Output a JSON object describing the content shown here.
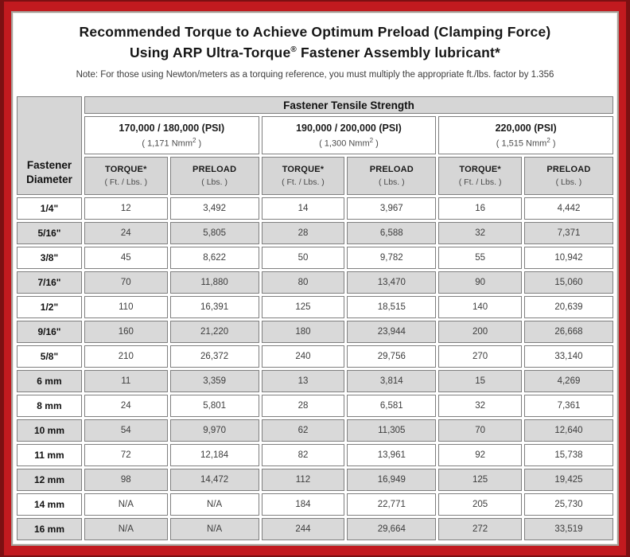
{
  "frame": {
    "red_color": "#c21a1f",
    "outer_edge_color": "#7c1012",
    "panel_border_color": "#a49f98",
    "cell_border_color": "#7f7f7f",
    "gray_cell_color": "#d6d6d6"
  },
  "header": {
    "title_line1": "Recommended Torque to Achieve Optimum Preload (Clamping Force)",
    "title_line2_pre": "Using ARP Ultra-Torque",
    "title_line2_sup": "®",
    "title_line2_post": " Fastener Assembly lubricant*",
    "note": "Note: For those using Newton/meters as a torquing reference, you must multiply the appropriate ft./lbs. factor by 1.356"
  },
  "chart_data": {
    "type": "table",
    "title": "Fastener Tensile Strength",
    "corner_line1": "Fastener",
    "corner_line2": "Diameter",
    "groups": [
      {
        "psi": "170,000 / 180,000 (PSI)",
        "nmm_pre": "( 1,171 Nmm",
        "nmm_sup": "2",
        "nmm_post": " )"
      },
      {
        "psi": "190,000 / 200,000 (PSI)",
        "nmm_pre": "( 1,300 Nmm",
        "nmm_sup": "2",
        "nmm_post": " )"
      },
      {
        "psi": "220,000 (PSI)",
        "nmm_pre": "( 1,515 Nmm",
        "nmm_sup": "2",
        "nmm_post": " )"
      }
    ],
    "sub_headers": {
      "torque_label": "TORQUE*",
      "torque_unit": "( Ft. / Lbs. )",
      "preload_label": "PRELOAD",
      "preload_unit": "( Lbs. )"
    },
    "rows": [
      {
        "diameter": "1/4\"",
        "values": [
          "12",
          "3,492",
          "14",
          "3,967",
          "16",
          "4,442"
        ]
      },
      {
        "diameter": "5/16\"",
        "values": [
          "24",
          "5,805",
          "28",
          "6,588",
          "32",
          "7,371"
        ]
      },
      {
        "diameter": "3/8\"",
        "values": [
          "45",
          "8,622",
          "50",
          "9,782",
          "55",
          "10,942"
        ]
      },
      {
        "diameter": "7/16\"",
        "values": [
          "70",
          "11,880",
          "80",
          "13,470",
          "90",
          "15,060"
        ]
      },
      {
        "diameter": "1/2\"",
        "values": [
          "110",
          "16,391",
          "125",
          "18,515",
          "140",
          "20,639"
        ]
      },
      {
        "diameter": "9/16\"",
        "values": [
          "160",
          "21,220",
          "180",
          "23,944",
          "200",
          "26,668"
        ]
      },
      {
        "diameter": "5/8\"",
        "values": [
          "210",
          "26,372",
          "240",
          "29,756",
          "270",
          "33,140"
        ]
      },
      {
        "diameter": "6 mm",
        "values": [
          "11",
          "3,359",
          "13",
          "3,814",
          "15",
          "4,269"
        ]
      },
      {
        "diameter": "8 mm",
        "values": [
          "24",
          "5,801",
          "28",
          "6,581",
          "32",
          "7,361"
        ]
      },
      {
        "diameter": "10 mm",
        "values": [
          "54",
          "9,970",
          "62",
          "11,305",
          "70",
          "12,640"
        ]
      },
      {
        "diameter": "11 mm",
        "values": [
          "72",
          "12,184",
          "82",
          "13,961",
          "92",
          "15,738"
        ]
      },
      {
        "diameter": "12 mm",
        "values": [
          "98",
          "14,472",
          "112",
          "16,949",
          "125",
          "19,425"
        ]
      },
      {
        "diameter": "14 mm",
        "values": [
          "N/A",
          "N/A",
          "184",
          "22,771",
          "205",
          "25,730"
        ]
      },
      {
        "diameter": "16 mm",
        "values": [
          "N/A",
          "N/A",
          "244",
          "29,664",
          "272",
          "33,519"
        ]
      }
    ]
  }
}
